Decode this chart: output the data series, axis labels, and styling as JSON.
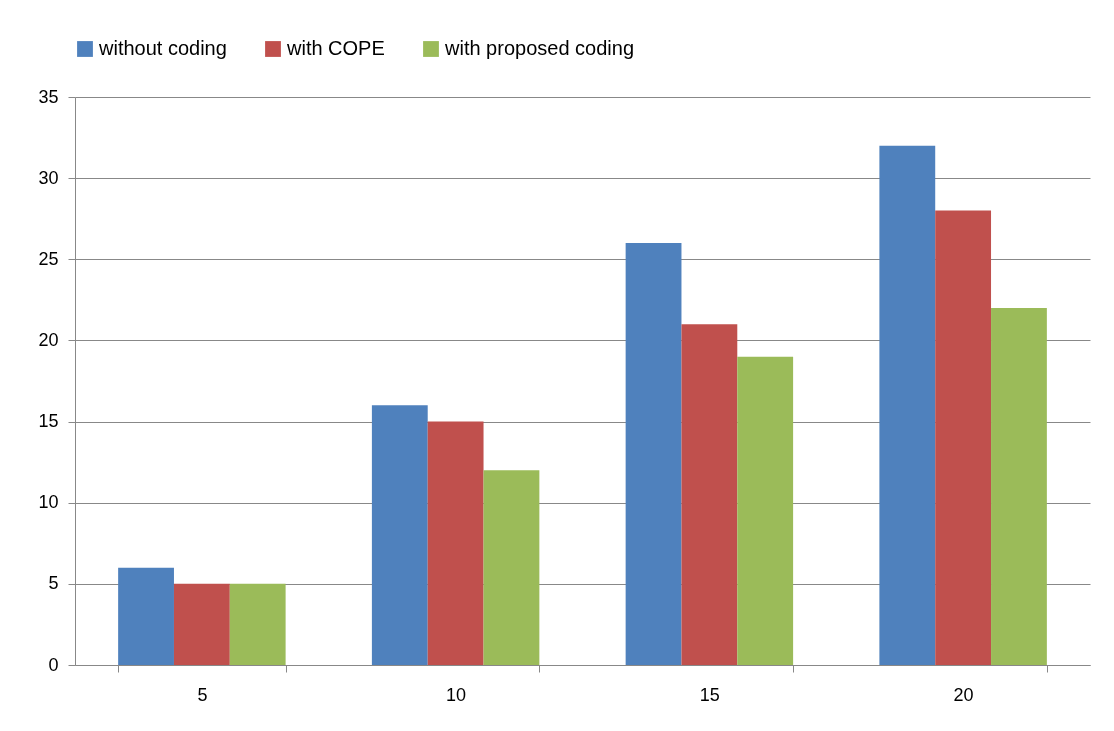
{
  "chart_data": {
    "type": "bar",
    "categories": [
      "5",
      "10",
      "15",
      "20"
    ],
    "series": [
      {
        "name": "without coding",
        "color": "#4f81bd",
        "values": [
          6,
          16,
          26,
          32
        ]
      },
      {
        "name": "with COPE",
        "color": "#c0504d",
        "values": [
          5,
          15,
          21,
          28
        ]
      },
      {
        "name": "with proposed coding",
        "color": "#9bbb59",
        "values": [
          5,
          12,
          19,
          22
        ]
      }
    ],
    "ylim": [
      0,
      35
    ],
    "yticks": [
      0,
      5,
      10,
      15,
      20,
      25,
      30,
      35
    ],
    "grid": "y",
    "legend": "top"
  }
}
